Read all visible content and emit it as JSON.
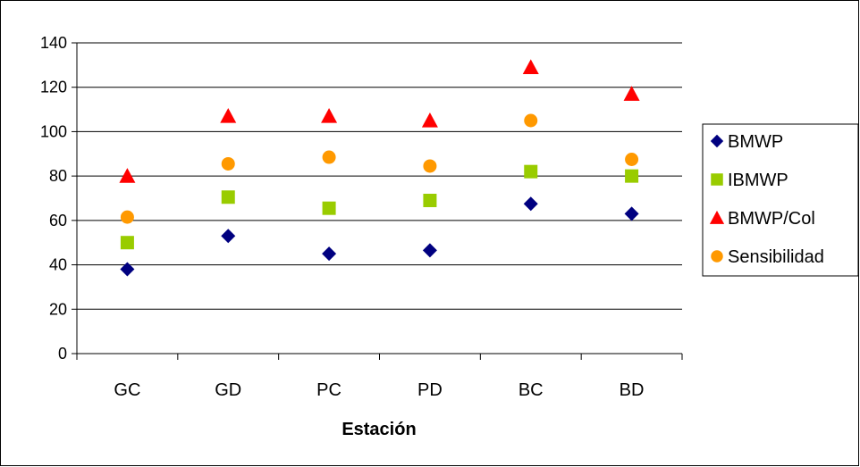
{
  "chart_data": {
    "type": "scatter",
    "title": "",
    "xlabel": "Estación",
    "ylabel": "",
    "categories": [
      "GC",
      "GD",
      "PC",
      "PD",
      "BC",
      "BD"
    ],
    "ylim": [
      0,
      140
    ],
    "yticks": [
      0,
      20,
      40,
      60,
      80,
      100,
      120,
      140
    ],
    "grid": "horizontal",
    "legend_position": "right",
    "series": [
      {
        "name": "BMWP",
        "marker": "diamond",
        "color": "#000080",
        "values": [
          38,
          53,
          45,
          46.5,
          67.5,
          63
        ]
      },
      {
        "name": "IBMWP",
        "marker": "square",
        "color": "#99CC00",
        "values": [
          50,
          70.5,
          65.5,
          69,
          82,
          80
        ]
      },
      {
        "name": "BMWP/Col",
        "marker": "triangle",
        "color": "#FF0000",
        "values": [
          80,
          107,
          107,
          105,
          129,
          117
        ]
      },
      {
        "name": "Sensibilidad",
        "marker": "circle",
        "color": "#FF9900",
        "values": [
          61.5,
          85.5,
          88.5,
          84.5,
          105,
          87.5
        ]
      }
    ]
  }
}
